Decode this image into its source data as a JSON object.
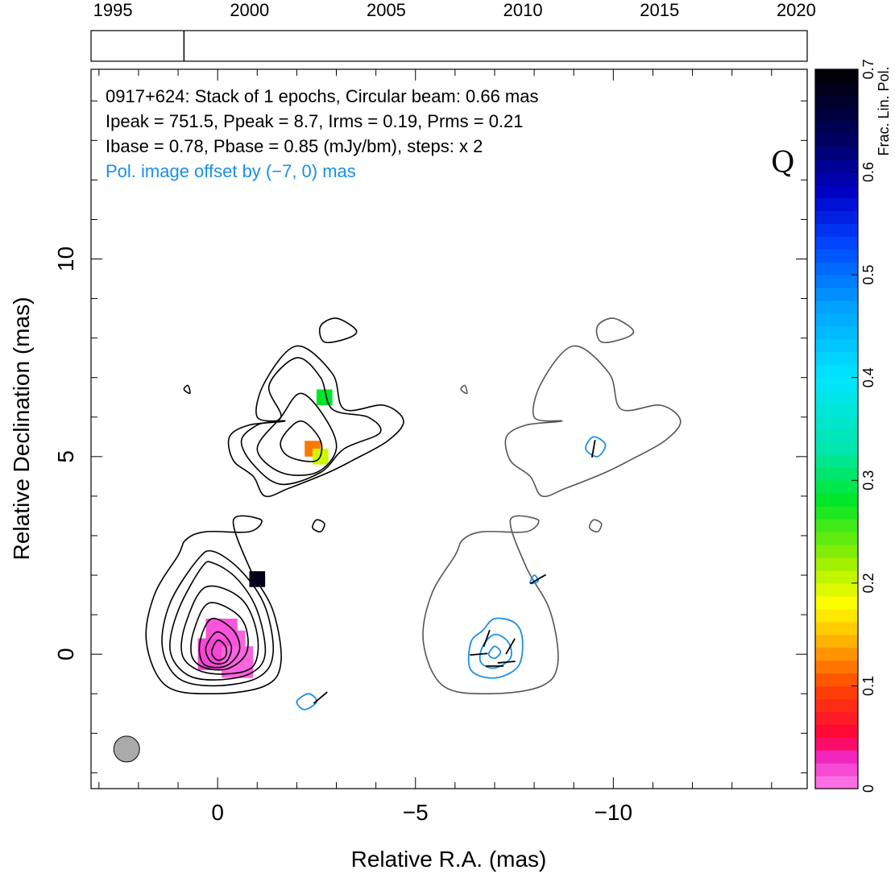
{
  "chart_data": {
    "type": "heatmap",
    "title_lines": [
      "0917+624: Stack of 1 epochs, Circular beam: 0.66 mas",
      "Ipeak = 751.5, Ppeak = 8.7, Irms = 0.19, Prms = 0.21",
      "Ibase = 0.78, Pbase = 0.85 (mJy/bm), steps: x 2"
    ],
    "offset_note": "Pol. image offset by (−7, 0) mas",
    "band_label": "Q",
    "xlabel": "Relative R.A. (mas)",
    "ylabel": "Relative Declination (mas)",
    "x_range": [
      3.2,
      -14.9
    ],
    "y_range": [
      -3.4,
      14.8
    ],
    "x_major_ticks": [
      0,
      -5,
      -10
    ],
    "x_tick_labels": [
      "0",
      "−5",
      "−10"
    ],
    "y_major_ticks": [
      0,
      5,
      10
    ],
    "y_tick_labels": [
      "0",
      "5",
      "10"
    ],
    "colorbar": {
      "label": "Frac. Lin. Pol.",
      "range": [
        0,
        0.7
      ],
      "ticks": [
        0,
        0.1,
        0.2,
        0.3,
        0.4,
        0.5,
        0.6,
        0.7
      ],
      "tick_labels": [
        "0",
        "0.1",
        "0.2",
        "0.3",
        "0.4",
        "0.5",
        "0.6",
        "0.7"
      ]
    },
    "timeline": {
      "range": [
        1994.2,
        2020.4
      ],
      "ticks": [
        1995,
        2000,
        2005,
        2010,
        2015,
        2020
      ],
      "tick_labels": [
        "1995",
        "2000",
        "2005",
        "2010",
        "2015",
        "2020"
      ],
      "epochs": [
        1997.6
      ]
    },
    "beam": {
      "x": 2.3,
      "y": -2.4,
      "diameter_mas": 0.66
    },
    "stokes_i_contours": [
      {
        "level": 1,
        "points": [
          [
            1.0,
            2.5
          ],
          [
            1.6,
            1.5
          ],
          [
            1.8,
            0.3
          ],
          [
            1.3,
            -0.8
          ],
          [
            0.1,
            -1.0
          ],
          [
            -1.2,
            -0.8
          ],
          [
            -1.6,
            -0.2
          ],
          [
            -1.4,
            1.1
          ],
          [
            -0.8,
            2.2
          ],
          [
            -0.4,
            3.4
          ],
          [
            -1.1,
            3.4
          ],
          [
            -0.8,
            3.1
          ],
          [
            0.3,
            3.1
          ],
          [
            0.8,
            2.9
          ]
        ]
      },
      {
        "level": 2,
        "points": [
          [
            0.5,
            2.4
          ],
          [
            1.2,
            1.3
          ],
          [
            1.4,
            0.2
          ],
          [
            1.0,
            -0.6
          ],
          [
            0.1,
            -0.8
          ],
          [
            -1.0,
            -0.6
          ],
          [
            -1.4,
            0.0
          ],
          [
            -1.2,
            1.2
          ],
          [
            -0.6,
            2.1
          ],
          [
            0.1,
            2.6
          ]
        ]
      },
      {
        "level": 3,
        "points": [
          [
            0.4,
            2.2
          ],
          [
            1.0,
            1.1
          ],
          [
            1.2,
            0.1
          ],
          [
            0.8,
            -0.5
          ],
          [
            0.1,
            -0.65
          ],
          [
            -0.8,
            -0.5
          ],
          [
            -1.2,
            0.0
          ],
          [
            -1.0,
            1.1
          ],
          [
            -0.5,
            1.9
          ],
          [
            0.1,
            2.3
          ]
        ]
      },
      {
        "level": 4,
        "points": [
          [
            0.3,
            1.7
          ],
          [
            0.8,
            0.8
          ],
          [
            0.9,
            0.0
          ],
          [
            0.5,
            -0.4
          ],
          [
            -0.2,
            -0.5
          ],
          [
            -0.9,
            -0.3
          ],
          [
            -1.0,
            0.5
          ],
          [
            -0.6,
            1.4
          ]
        ]
      },
      {
        "level": 5,
        "points": [
          [
            0.2,
            1.3
          ],
          [
            0.6,
            0.6
          ],
          [
            0.65,
            -0.05
          ],
          [
            0.3,
            -0.35
          ],
          [
            -0.3,
            -0.35
          ],
          [
            -0.75,
            0.1
          ],
          [
            -0.6,
            0.9
          ]
        ]
      },
      {
        "level": 6,
        "points": [
          [
            0.15,
            0.9
          ],
          [
            0.45,
            0.3
          ],
          [
            0.35,
            -0.25
          ],
          [
            -0.2,
            -0.3
          ],
          [
            -0.55,
            0.1
          ],
          [
            -0.4,
            0.6
          ]
        ]
      },
      {
        "level": 7,
        "points": [
          [
            0.05,
            0.55
          ],
          [
            0.3,
            0.15
          ],
          [
            0.15,
            -0.2
          ],
          [
            -0.2,
            -0.2
          ],
          [
            -0.35,
            0.15
          ],
          [
            -0.2,
            0.45
          ]
        ]
      },
      {
        "level": 8,
        "points": [
          [
            0.0,
            0.35
          ],
          [
            0.15,
            0.05
          ],
          [
            0.0,
            -0.15
          ],
          [
            -0.2,
            -0.05
          ],
          [
            -0.2,
            0.2
          ]
        ]
      },
      {
        "level": 1,
        "points": [
          [
            -1.7,
            5.9
          ],
          [
            -1.0,
            6.0
          ],
          [
            -1.2,
            6.9
          ],
          [
            -2.0,
            7.8
          ],
          [
            -2.9,
            7.1
          ],
          [
            -3.2,
            6.2
          ],
          [
            -4.2,
            6.3
          ],
          [
            -4.7,
            5.9
          ],
          [
            -4.3,
            5.4
          ],
          [
            -3.4,
            4.9
          ],
          [
            -2.8,
            4.6
          ],
          [
            -1.8,
            4.2
          ],
          [
            -1.2,
            4.0
          ],
          [
            -0.9,
            4.5
          ],
          [
            -0.4,
            4.9
          ],
          [
            -0.3,
            5.5
          ],
          [
            -0.8,
            5.8
          ]
        ]
      },
      {
        "level": 2,
        "points": [
          [
            -1.6,
            6.0
          ],
          [
            -1.3,
            6.8
          ],
          [
            -2.0,
            7.5
          ],
          [
            -2.6,
            7.0
          ],
          [
            -2.9,
            6.2
          ],
          [
            -3.8,
            6.0
          ],
          [
            -4.1,
            5.6
          ],
          [
            -3.2,
            5.2
          ],
          [
            -2.6,
            4.6
          ],
          [
            -1.6,
            4.3
          ],
          [
            -0.9,
            4.8
          ],
          [
            -0.6,
            5.4
          ],
          [
            -1.0,
            5.8
          ]
        ]
      },
      {
        "level": 3,
        "points": [
          [
            -2.1,
            6.6
          ],
          [
            -2.7,
            6.0
          ],
          [
            -3.0,
            5.2
          ],
          [
            -2.5,
            4.6
          ],
          [
            -1.6,
            4.6
          ],
          [
            -1.0,
            5.2
          ],
          [
            -1.6,
            6.0
          ]
        ]
      },
      {
        "level": 4,
        "points": [
          [
            -2.1,
            5.9
          ],
          [
            -2.6,
            5.4
          ],
          [
            -2.5,
            4.9
          ],
          [
            -1.8,
            5.0
          ],
          [
            -1.6,
            5.4
          ]
        ]
      },
      {
        "level": 1,
        "points": [
          [
            -2.6,
            8.3
          ],
          [
            -3.0,
            8.5
          ],
          [
            -3.5,
            8.2
          ],
          [
            -3.3,
            8.0
          ],
          [
            -2.7,
            7.9
          ]
        ]
      },
      {
        "level": 1,
        "points": [
          [
            -2.5,
            3.4
          ],
          [
            -2.7,
            3.3
          ],
          [
            -2.6,
            3.1
          ],
          [
            -2.4,
            3.2
          ]
        ]
      },
      {
        "level": 1,
        "points": [
          [
            0.85,
            6.7
          ],
          [
            0.7,
            6.6
          ],
          [
            0.75,
            6.8
          ]
        ]
      }
    ],
    "pol_contours_offset": [
      {
        "level": 1,
        "points": [
          [
            -7.0,
            0.9
          ],
          [
            -7.5,
            0.8
          ],
          [
            -7.7,
            0.4
          ],
          [
            -7.6,
            -0.3
          ],
          [
            -7.0,
            -0.6
          ],
          [
            -6.4,
            -0.4
          ],
          [
            -6.4,
            0.3
          ],
          [
            -6.7,
            0.6
          ]
        ]
      },
      {
        "level": 2,
        "points": [
          [
            -7.0,
            0.5
          ],
          [
            -7.35,
            0.3
          ],
          [
            -7.4,
            -0.1
          ],
          [
            -7.0,
            -0.35
          ],
          [
            -6.65,
            -0.2
          ],
          [
            -6.7,
            0.2
          ]
        ]
      },
      {
        "level": 3,
        "points": [
          [
            -7.0,
            0.2
          ],
          [
            -7.15,
            0.05
          ],
          [
            -7.0,
            -0.1
          ],
          [
            -6.85,
            0.0
          ]
        ]
      },
      {
        "level": 1,
        "points": [
          [
            -9.5,
            5.5
          ],
          [
            -9.8,
            5.3
          ],
          [
            -9.6,
            5.0
          ],
          [
            -9.3,
            5.2
          ]
        ]
      },
      {
        "level": 1,
        "points": [
          [
            -8.0,
            2.0
          ],
          [
            -8.1,
            1.85
          ],
          [
            -7.9,
            1.8
          ]
        ]
      },
      {
        "level": 1,
        "points": [
          [
            -2.3,
            -1.0
          ],
          [
            -2.5,
            -1.2
          ],
          [
            -2.2,
            -1.4
          ],
          [
            -2.0,
            -1.2
          ]
        ]
      }
    ],
    "evpa_vectors": [
      {
        "x": -6.8,
        "y": 0.4,
        "angle_deg": 70
      },
      {
        "x": -7.4,
        "y": 0.2,
        "angle_deg": 60
      },
      {
        "x": -6.6,
        "y": 0.0,
        "angle_deg": 5
      },
      {
        "x": -7.3,
        "y": -0.2,
        "angle_deg": 5
      },
      {
        "x": -7.0,
        "y": -0.3,
        "angle_deg": 0
      },
      {
        "x": -9.5,
        "y": 5.2,
        "angle_deg": 80
      },
      {
        "x": -8.1,
        "y": 1.9,
        "angle_deg": 30
      },
      {
        "x": -2.6,
        "y": -1.1,
        "angle_deg": 40
      }
    ],
    "frac_pol_pixels": [
      {
        "x": -0.3,
        "y": 0.2,
        "value": 0.01
      },
      {
        "x": -0.1,
        "y": 0.5,
        "value": 0.015
      },
      {
        "x": 0.1,
        "y": 0.0,
        "value": 0.02
      },
      {
        "x": -0.5,
        "y": -0.2,
        "value": 0.01
      },
      {
        "x": -2.4,
        "y": 5.2,
        "value": 0.12
      },
      {
        "x": -2.6,
        "y": 5.0,
        "value": 0.2
      },
      {
        "x": -1.0,
        "y": 1.9,
        "value": 0.68
      },
      {
        "x": -2.7,
        "y": 6.5,
        "value": 0.28
      }
    ]
  }
}
